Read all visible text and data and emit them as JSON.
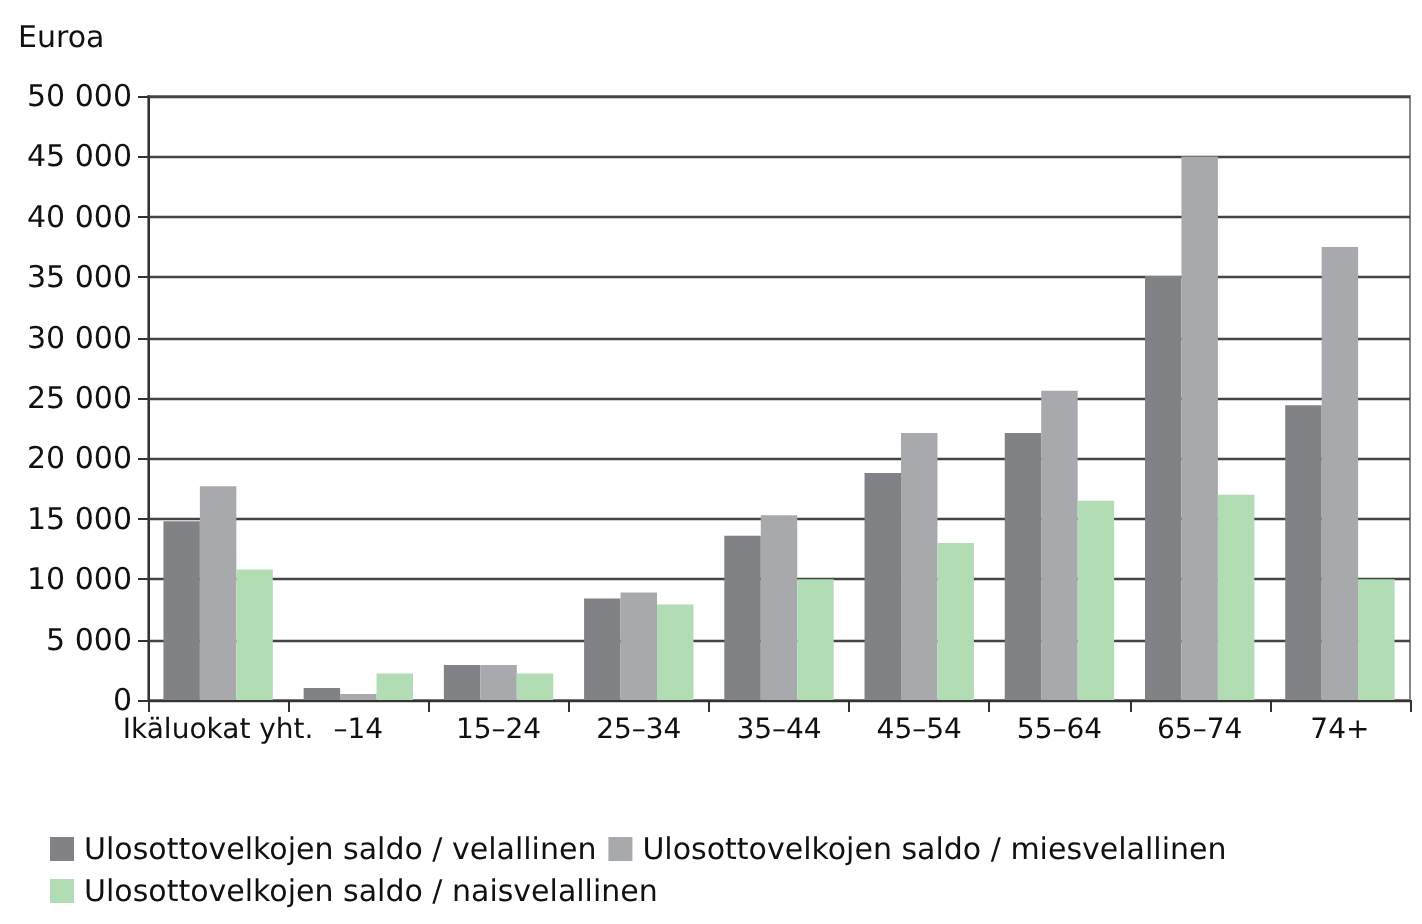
{
  "chart_data": {
    "type": "bar",
    "ylabel": "Euroa",
    "categories": [
      "Ikäluokat yht.",
      "–14",
      "15–24",
      "25–34",
      "35–44",
      "45–54",
      "55–64",
      "65–74",
      "74+"
    ],
    "series": [
      {
        "name": "Ulosottovelkojen saldo / velallinen",
        "color": "#818286",
        "values": [
          14800,
          1000,
          2900,
          8400,
          13600,
          18800,
          22100,
          35100,
          24400
        ]
      },
      {
        "name": "Ulosottovelkojen saldo / miesvelallinen",
        "color": "#a8a9ad",
        "values": [
          17700,
          500,
          2900,
          8900,
          15300,
          22100,
          25600,
          45000,
          37500
        ]
      },
      {
        "name": "Ulosottovelkojen saldo / naisvelallinen",
        "color": "#b2dcb4",
        "values": [
          10800,
          2200,
          2200,
          7900,
          10000,
          13000,
          16500,
          17000,
          10000
        ]
      }
    ],
    "ylim": [
      0,
      50000
    ],
    "yticks": [
      0,
      {
        "value": 5000,
        "label": "5 000"
      },
      {
        "value": 10000,
        "label": "10 000"
      },
      {
        "value": 15000,
        "label": "15 000"
      },
      {
        "value": 20000,
        "label": "20 000"
      },
      {
        "value": 25000,
        "label": "25 000"
      },
      {
        "value": 30000,
        "label": "30 000"
      },
      {
        "value": 35000,
        "label": "35 000"
      },
      {
        "value": 40000,
        "label": "40 000"
      },
      {
        "value": 45000,
        "label": "45 000"
      },
      {
        "value": 50000,
        "label": "50 000"
      }
    ],
    "grid": "y",
    "legend": "bottom"
  }
}
